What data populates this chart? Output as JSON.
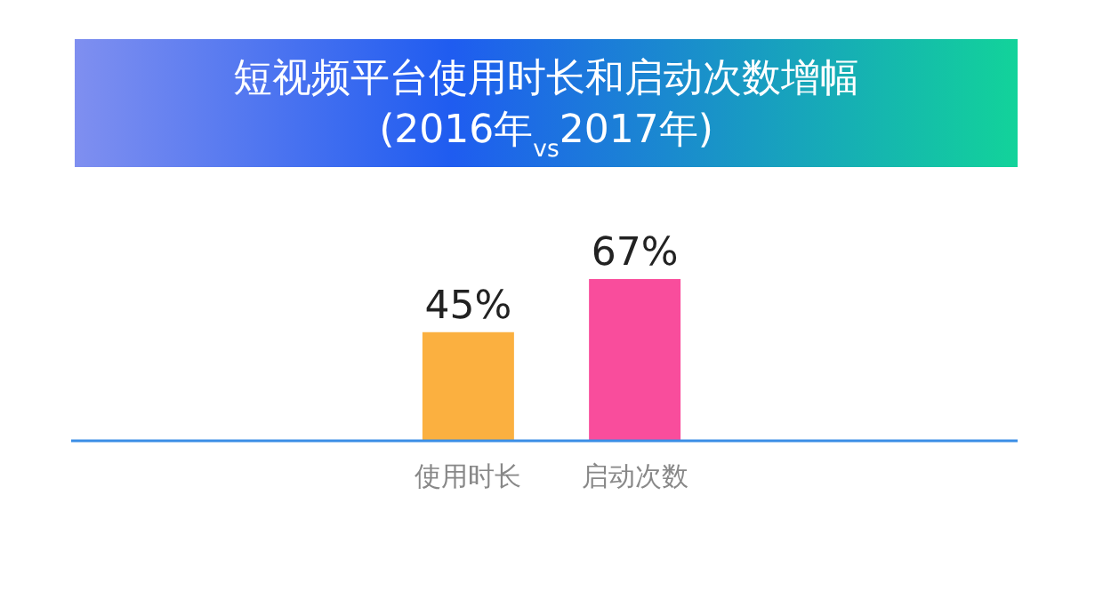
{
  "chart_data": {
    "type": "bar",
    "title": "短视频平台使用时长和启动次数增幅",
    "subtitle": "(2016年$_{vs}$2017年)",
    "categories": [
      "使用时长",
      "启动次数"
    ],
    "values": [
      45,
      67
    ],
    "colors": [
      "#fbb040",
      "#f94d9c"
    ],
    "value_labels": [
      "45%",
      "67%"
    ]
  }
}
